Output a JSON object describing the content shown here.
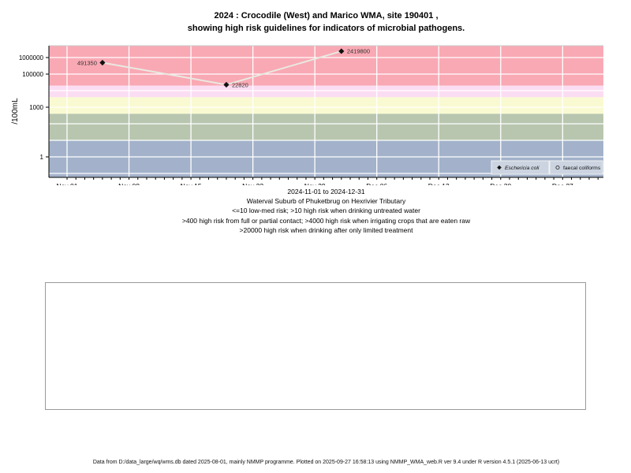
{
  "title": {
    "line1": "2024 : Crocodile (West) and Marico WMA, site 190401 ,",
    "line2": "showing high risk guidelines for indicators of microbial pathogens."
  },
  "subtitle": {
    "lines": [
      "2024-11-01 to 2024-12-31",
      "Waterval Suburb of Phuketbrug on Hexrivier Tributary",
      "<=10 low-med risk; >10 high risk when drinking untreated water",
      ">400 high risk from full or partial contact; >4000 high risk when irrigating crops that are eaten raw",
      ">20000 high risk when drinking after only limited treatment"
    ]
  },
  "footer": {
    "text": "Data from D:/data_large/wq/wms.db dated 2025-08-01, mainly NMMP programme. Plotted on 2025-09-27 16:58:13 using NMMP_WMA_web.R ver 9.4 under R version 4.5.1 (2025-06-13 ucrt)"
  },
  "chart_data": {
    "type": "line",
    "title": "2024 : Crocodile (West) and Marico WMA, site 190401 , showing high risk guidelines for indicators of microbial pathogens.",
    "ylabel": "/100mL",
    "y_scale": "log10",
    "ylim": [
      0.06,
      5000000
    ],
    "xlim_dates": [
      "2024-11-01",
      "2024-12-31"
    ],
    "grid": "white-on-bands",
    "y_ticks": [
      {
        "value": 1000000,
        "label": "1000000"
      },
      {
        "value": 100000,
        "label": "100000"
      },
      {
        "value": 1000,
        "label": "1000"
      },
      {
        "value": 1,
        "label": "1"
      }
    ],
    "y_gridline_decades": [
      -1,
      0,
      1,
      2,
      3,
      4,
      5,
      6
    ],
    "x_ticks": [
      {
        "day": 0,
        "label": "Nov 01"
      },
      {
        "day": 7,
        "label": "Nov 08"
      },
      {
        "day": 14,
        "label": "Nov 15"
      },
      {
        "day": 21,
        "label": "Nov 22"
      },
      {
        "day": 28,
        "label": "Nov 29"
      },
      {
        "day": 35,
        "label": "Dec 06"
      },
      {
        "day": 42,
        "label": "Dec 13"
      },
      {
        "day": 49,
        "label": "Dec 20"
      },
      {
        "day": 56,
        "label": "Dec 27"
      }
    ],
    "x_minor_tick_count": 61,
    "bands": [
      {
        "name": "risk-above-20000",
        "min": 20000,
        "max": null,
        "color": "#F9A9B4"
      },
      {
        "name": "risk-4000-20000",
        "min": 4000,
        "max": 20000,
        "color": "#FBDDF3"
      },
      {
        "name": "risk-400-4000",
        "min": 400,
        "max": 4000,
        "color": "#FAFAD2"
      },
      {
        "name": "risk-10-400",
        "min": 10,
        "max": 400,
        "color": "#B9C6AF"
      },
      {
        "name": "risk-below-10",
        "min": null,
        "max": 10,
        "color": "#A3B2CA"
      }
    ],
    "series": [
      {
        "name": "Eschericia coli",
        "marker": "filled-diamond",
        "marker_color": "#111111",
        "line_color": "#E9E9E1",
        "points": [
          {
            "day": 4,
            "value": 491350,
            "label": "491350",
            "label_side": "left"
          },
          {
            "day": 18,
            "value": 22820,
            "label": "22820",
            "label_side": "right"
          },
          {
            "day": 31,
            "value": 2419800,
            "label": "2419800",
            "label_side": "right"
          }
        ]
      },
      {
        "name": "faecal coliforms",
        "marker": "open-circle",
        "marker_color": "#333333",
        "line_color": "#E9E9E1",
        "points": []
      }
    ],
    "legend": {
      "position": "bottom-right-inside",
      "background": "#CBD4E0",
      "entries": [
        {
          "label": "Eschericia coli",
          "marker": "filled-diamond",
          "italic": true
        },
        {
          "label": "faecal coliforms",
          "marker": "open-circle",
          "italic": false
        }
      ]
    }
  },
  "colors": {
    "plot_top_border": "#c8c8c8",
    "axis": "#000000",
    "gridline": "#ffffff",
    "point_label": "#333333",
    "legend_border": "#f2f2f2"
  }
}
